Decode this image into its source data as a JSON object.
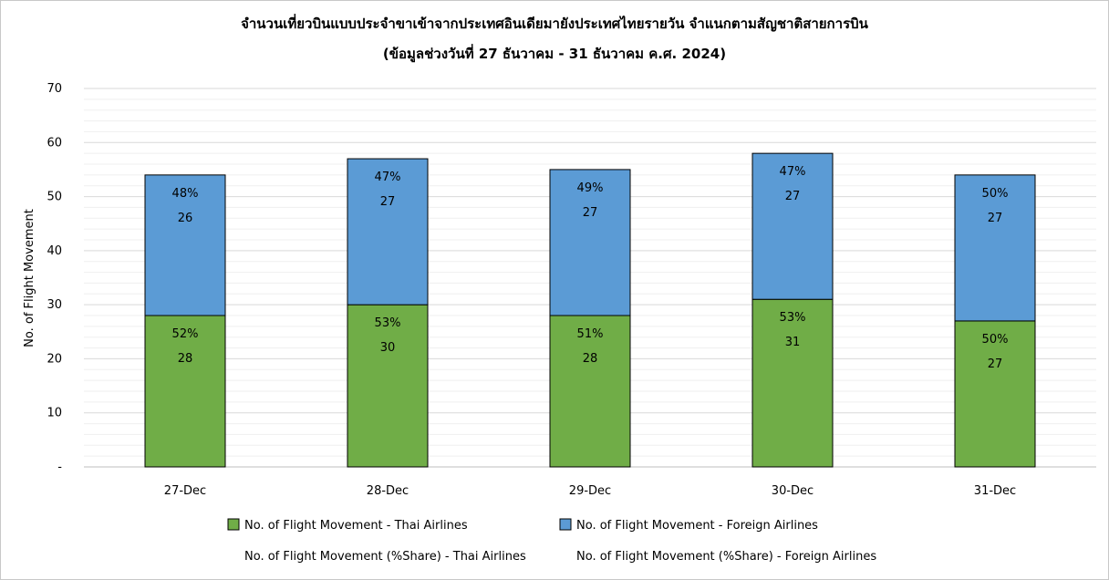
{
  "chart_data": {
    "type": "bar",
    "stacked": true,
    "title": "จำนวนเที่ยวบินแบบประจำขาเข้าจากประเทศอินเดียมายังประเทศไทยรายวัน  จำแนกตามสัญชาติสายการบิน",
    "subtitle": "(ข้อมูลช่วงวันที่ 27 ธันวาคม - 31 ธันวาคม ค.ศ. 2024)",
    "xlabel": "",
    "ylabel": "No. of Flight Movement",
    "ylim": [
      0,
      70
    ],
    "yticks": [
      {
        "value": 0,
        "label": "-"
      },
      {
        "value": 10,
        "label": "10"
      },
      {
        "value": 20,
        "label": "20"
      },
      {
        "value": 30,
        "label": "30"
      },
      {
        "value": 40,
        "label": "40"
      },
      {
        "value": 50,
        "label": "50"
      },
      {
        "value": 60,
        "label": "60"
      },
      {
        "value": 70,
        "label": "70"
      }
    ],
    "grid": true,
    "legend_position": "bottom",
    "categories": [
      "27-Dec",
      "28-Dec",
      "29-Dec",
      "30-Dec",
      "31-Dec"
    ],
    "series": [
      {
        "name": "No. of Flight Movement - Thai Airlines",
        "color": "#70ad47",
        "values": [
          28,
          30,
          28,
          31,
          27
        ],
        "share_labels": [
          "52%",
          "53%",
          "51%",
          "53%",
          "50%"
        ]
      },
      {
        "name": "No. of Flight Movement - Foreign Airlines",
        "color": "#5b9bd5",
        "values": [
          26,
          27,
          27,
          27,
          27
        ],
        "share_labels": [
          "48%",
          "47%",
          "49%",
          "47%",
          "50%"
        ]
      }
    ],
    "share_legend": [
      "No. of Flight Movement (%Share) - Thai Airlines",
      "No. of Flight Movement (%Share) - Foreign Airlines"
    ]
  }
}
